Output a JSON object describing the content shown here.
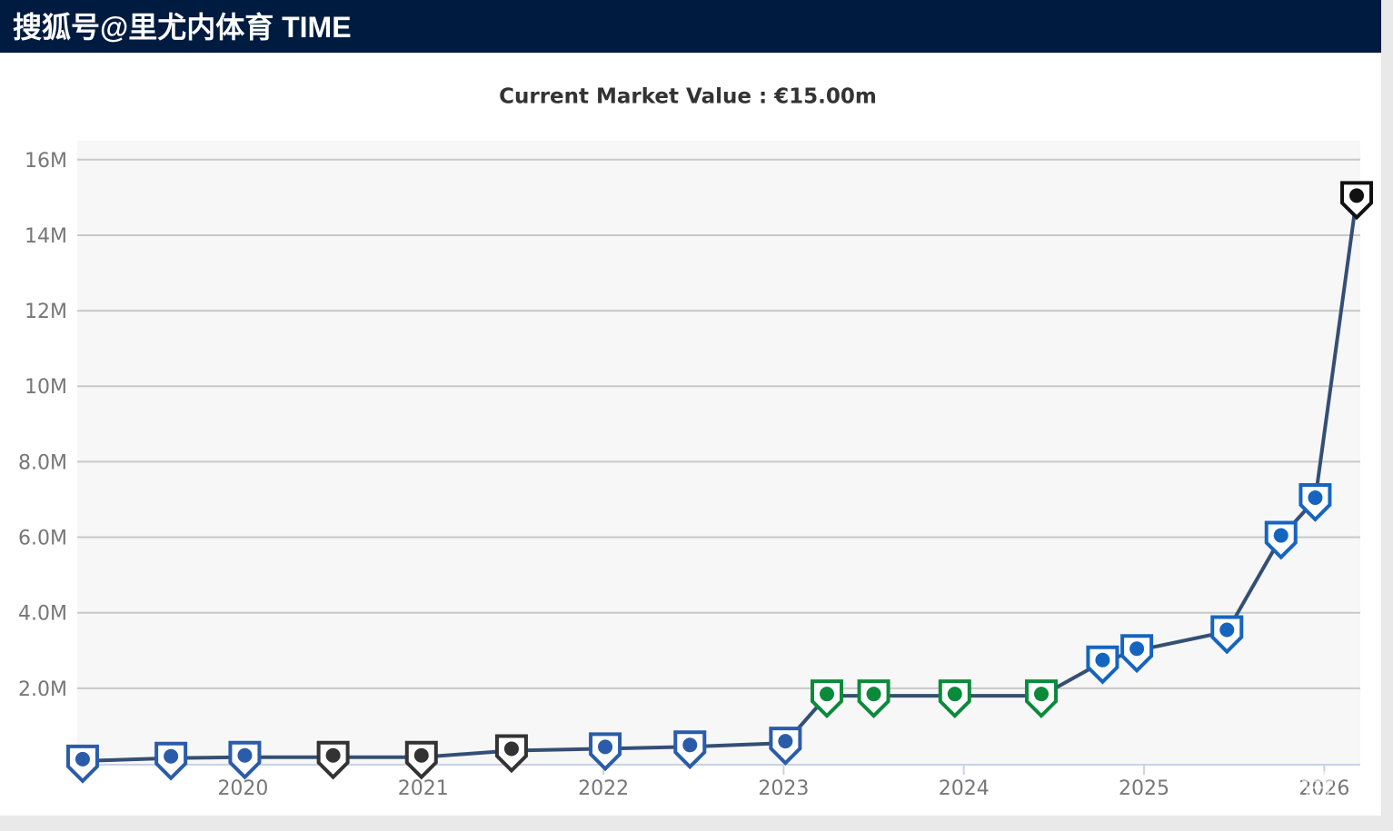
{
  "header": {
    "title": "搜狐号@里尤内体育 TIME"
  },
  "chart_data": {
    "type": "line",
    "title": "Current Market Value : €15.00m",
    "x": [
      2019.11,
      2019.6,
      2020.01,
      2020.5,
      2020.99,
      2021.49,
      2022.01,
      2022.48,
      2023.01,
      2023.24,
      2023.5,
      2023.95,
      2024.43,
      2024.77,
      2024.96,
      2025.46,
      2025.76,
      2025.95,
      2026.18
    ],
    "series": [
      {
        "color": "#344f75",
        "values": [
          0.075,
          0.15,
          0.175,
          0.175,
          0.175,
          0.35,
          0.4,
          0.45,
          0.55,
          1.8,
          1.8,
          1.8,
          1.8,
          2.7,
          3.0,
          3.5,
          6.0,
          7.0,
          15.0
        ],
        "marker_colors": [
          "#2a5caa",
          "#2a5caa",
          "#2a5caa",
          "#333333",
          "#333333",
          "#333333",
          "#2a5caa",
          "#2a5caa",
          "#2a5caa",
          "#0c8a3c",
          "#0c8a3c",
          "#0c8a3c",
          "#0c8a3c",
          "#1565c0",
          "#1565c0",
          "#1565c0",
          "#1565c0",
          "#1565c0",
          "#111111"
        ]
      }
    ],
    "xlim": [
      2019.08,
      2026.2
    ],
    "xticks": [
      2020,
      2021,
      2022,
      2023,
      2024,
      2025,
      2026
    ],
    "ylim": [
      0,
      16.5
    ],
    "yticks": [
      {
        "value": 2,
        "label": "2.0M"
      },
      {
        "value": 4,
        "label": "4.0M"
      },
      {
        "value": 6,
        "label": "6.0M"
      },
      {
        "value": 8,
        "label": "8.0M"
      },
      {
        "value": 10,
        "label": "10M"
      },
      {
        "value": 12,
        "label": "12M"
      },
      {
        "value": 14,
        "label": "14M"
      },
      {
        "value": 16,
        "label": "16M"
      }
    ],
    "grid": true,
    "watermark": "懂球帝"
  }
}
